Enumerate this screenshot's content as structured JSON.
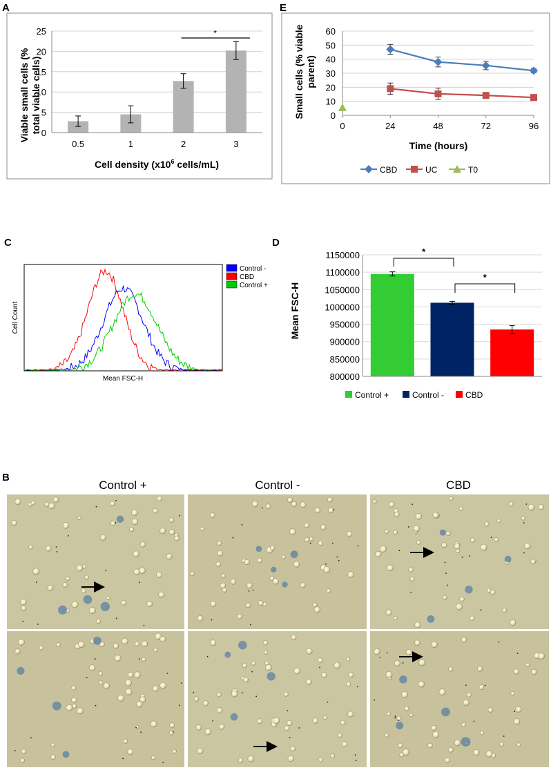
{
  "figure": {
    "panel_labels": [
      "A",
      "E",
      "C",
      "D",
      "B"
    ]
  },
  "chart_data": [
    {
      "panel": "A",
      "type": "bar",
      "categories": [
        "0.5",
        "1",
        "2",
        "3"
      ],
      "values": [
        2.8,
        4.5,
        12.7,
        20.2
      ],
      "errors": [
        1.3,
        2.1,
        1.8,
        2.2
      ],
      "ylabel_line1": "Viable small cells (%",
      "ylabel_line2": "total viable cells)",
      "xlabel_main": "Cell density (x10",
      "xlabel_sup": "6",
      "xlabel_tail": " cells/mL)",
      "ylim": [
        0,
        25
      ],
      "yticks": [
        "0",
        "5",
        "10",
        "15",
        "20",
        "25"
      ],
      "significance": "*",
      "bar_color": "#b3b3b3"
    },
    {
      "panel": "E",
      "type": "line",
      "x": [
        0,
        24,
        48,
        72,
        96
      ],
      "xticks": [
        "0",
        "24",
        "48",
        "72",
        "96"
      ],
      "yticks": [
        "0",
        "10",
        "20",
        "30",
        "40",
        "50",
        "60"
      ],
      "ylim": [
        0,
        60
      ],
      "xlabel": "Time (hours)",
      "ylabel_line1": "Small cells (% viable",
      "ylabel_line2": "parent)",
      "series": [
        {
          "name": "CBD",
          "x": [
            24,
            48,
            72,
            96
          ],
          "values": [
            47,
            38,
            35.5,
            31.8
          ],
          "errors": [
            3.5,
            3.5,
            3,
            1.5
          ],
          "color": "#4a7ebb",
          "marker": "diamond"
        },
        {
          "name": "UC",
          "x": [
            24,
            48,
            72,
            96
          ],
          "values": [
            19,
            15.3,
            14.2,
            12.7
          ],
          "errors": [
            4,
            4,
            1.3,
            1
          ],
          "color": "#c0504d",
          "marker": "square"
        },
        {
          "name": "T0",
          "x": [
            0
          ],
          "values": [
            5.5
          ],
          "errors": [
            0
          ],
          "color": "#9bbb59",
          "marker": "triangle"
        }
      ]
    },
    {
      "panel": "C",
      "type": "line",
      "description_free": true,
      "xlabel": "Mean FSC-H",
      "ylabel": "Cell Count",
      "series": [
        {
          "name": "Control -",
          "color": "#0000ff",
          "peak_x": 0.5,
          "width": 0.1,
          "height": 0.8
        },
        {
          "name": "CBD",
          "color": "#ff0000",
          "peak_x": 0.41,
          "width": 0.09,
          "height": 0.97
        },
        {
          "name": "Control +",
          "color": "#00cc00",
          "peak_x": 0.56,
          "width": 0.11,
          "height": 0.75
        }
      ]
    },
    {
      "panel": "D",
      "type": "bar",
      "categories": [
        "Control +",
        "Control -",
        "CBD"
      ],
      "values": [
        1095000,
        1012000,
        935000
      ],
      "errors": [
        6000,
        4000,
        11000
      ],
      "colors": [
        "#33cc33",
        "#002366",
        "#ff0000"
      ],
      "ylabel": "Mean FSC-H",
      "ylim": [
        800000,
        1150000
      ],
      "yticks": [
        "800000",
        "850000",
        "900000",
        "950000",
        "1000000",
        "1050000",
        "1100000",
        "1150000"
      ],
      "significance": [
        "*",
        "*"
      ],
      "legend": [
        "Control +",
        "Control -",
        "CBD"
      ]
    }
  ],
  "micrographs": {
    "columns": [
      "Control +",
      "Control -",
      "CBD"
    ]
  }
}
